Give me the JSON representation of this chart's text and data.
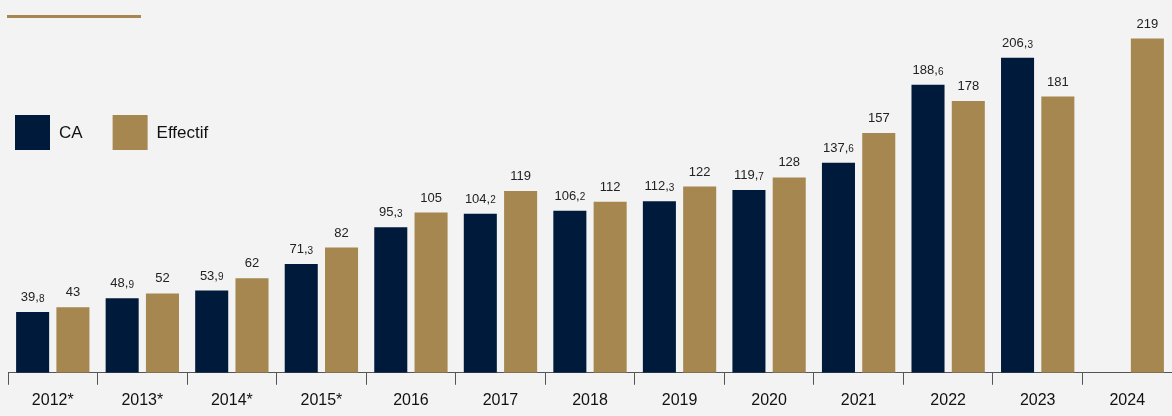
{
  "chart_data": {
    "type": "bar",
    "categories": [
      "2012*",
      "2013*",
      "2014*",
      "2015*",
      "2016",
      "2017",
      "2018",
      "2019",
      "2020",
      "2021",
      "2022",
      "2023",
      "2024"
    ],
    "series": [
      {
        "name": "CA",
        "color": "#001a3b",
        "values": [
          39.8,
          48.9,
          53.9,
          71.3,
          95.3,
          104.2,
          106.2,
          112.3,
          119.7,
          137.6,
          188.6,
          206.3,
          null
        ],
        "value_labels": [
          "39,8",
          "48,9",
          "53,9",
          "71,3",
          "95,3",
          "104,2",
          "106,2",
          "112,3",
          "119,7",
          "137,6",
          "188,6",
          "206,3",
          null
        ]
      },
      {
        "name": "Effectif",
        "color": "#a5874f",
        "values": [
          43,
          52,
          62,
          82,
          105,
          119,
          112,
          122,
          128,
          157,
          178,
          181,
          219
        ],
        "value_labels": [
          "43",
          "52",
          "62",
          "82",
          "105",
          "119",
          "112",
          "122",
          "128",
          "157",
          "178",
          "181",
          "219"
        ]
      }
    ],
    "legend": "top left",
    "grid": false
  }
}
